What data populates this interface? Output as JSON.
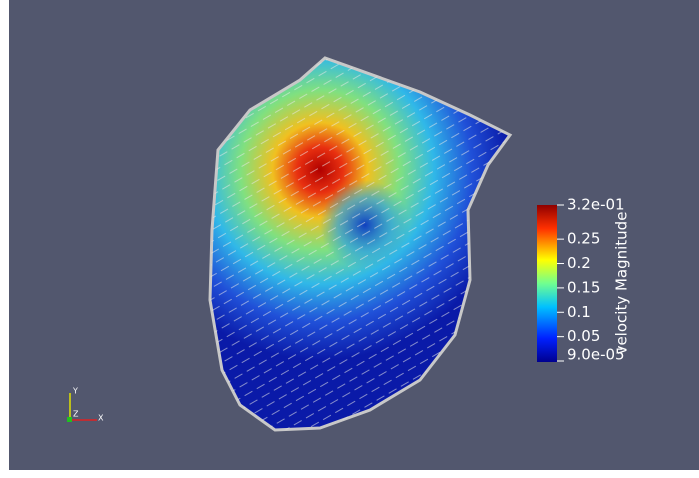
{
  "colorbar": {
    "title": "velocity Magnitude",
    "max_label": "3.2e-01",
    "min_label": "9.0e-05",
    "tick_labels": [
      "0.25",
      "0.2",
      "0.15",
      "0.1",
      "0.05"
    ]
  },
  "axes_triad": {
    "y": "Y",
    "z": "Z",
    "x": "X"
  }
}
